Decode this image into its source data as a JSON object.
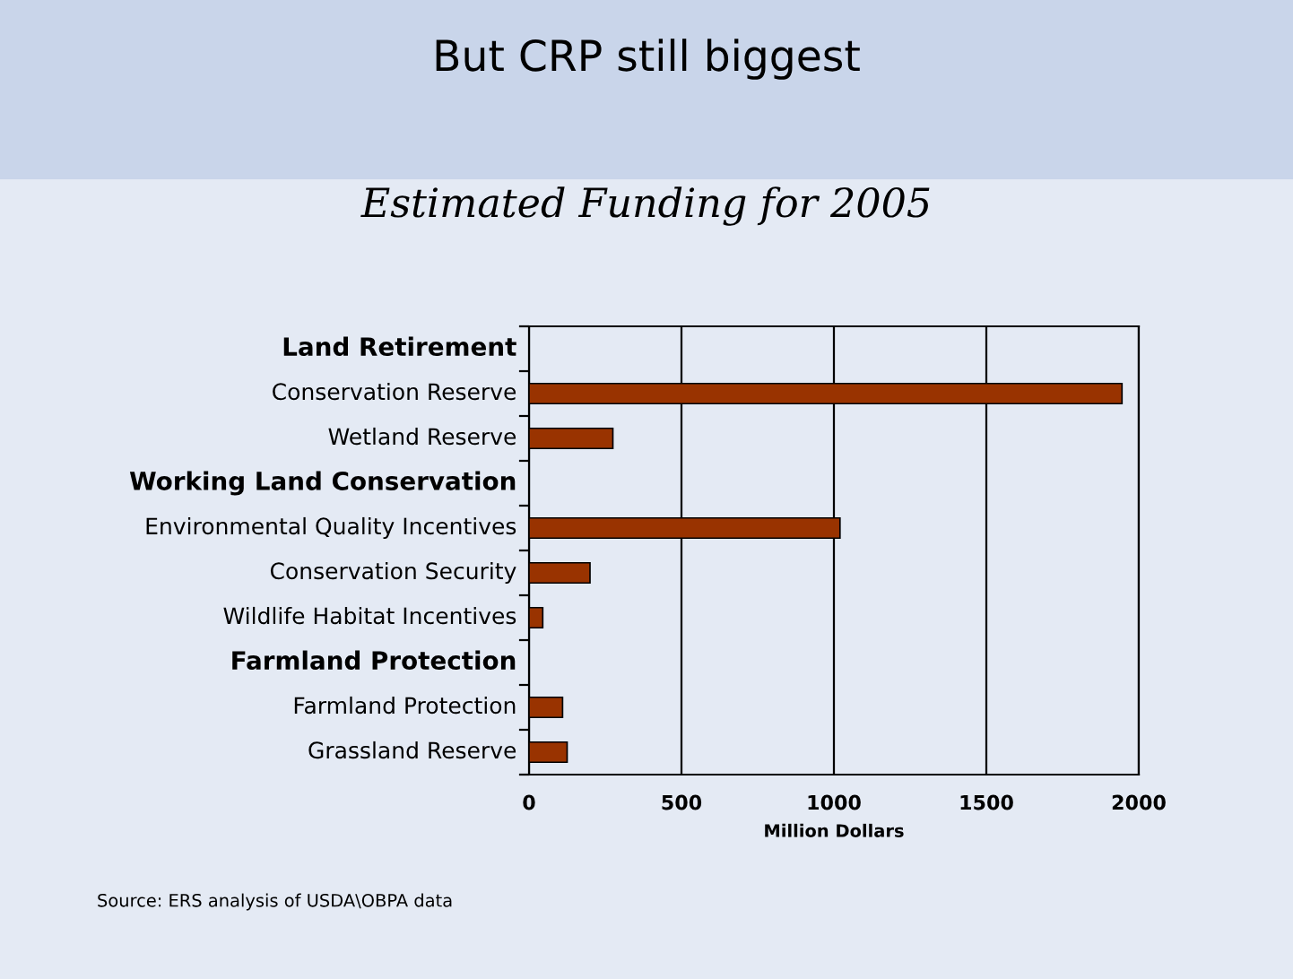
{
  "chart_data": {
    "type": "bar",
    "orientation": "horizontal",
    "title": "But CRP still biggest",
    "subtitle": "Estimated Funding for 2005",
    "xlabel": "Million Dollars",
    "categories": [
      "Land Retirement",
      "Conservation Reserve",
      "Wetland Reserve",
      "Working Land Conservation",
      "Environmental Quality Incentives",
      "Conservation Security",
      "Wildlife Habitat Incentives",
      "Farmland Protection",
      "Farmland Protection",
      "Grassland Reserve"
    ],
    "values": [
      null,
      1945,
      275,
      null,
      1020,
      200,
      45,
      null,
      110,
      125
    ],
    "color": "#993300",
    "xlim": [
      0,
      2000
    ],
    "xticks": [
      0,
      500,
      1000,
      1500,
      2000
    ],
    "grid": "x",
    "legend": false,
    "annotations": [
      "Source: ERS analysis of USDA\\OBPA data"
    ]
  }
}
